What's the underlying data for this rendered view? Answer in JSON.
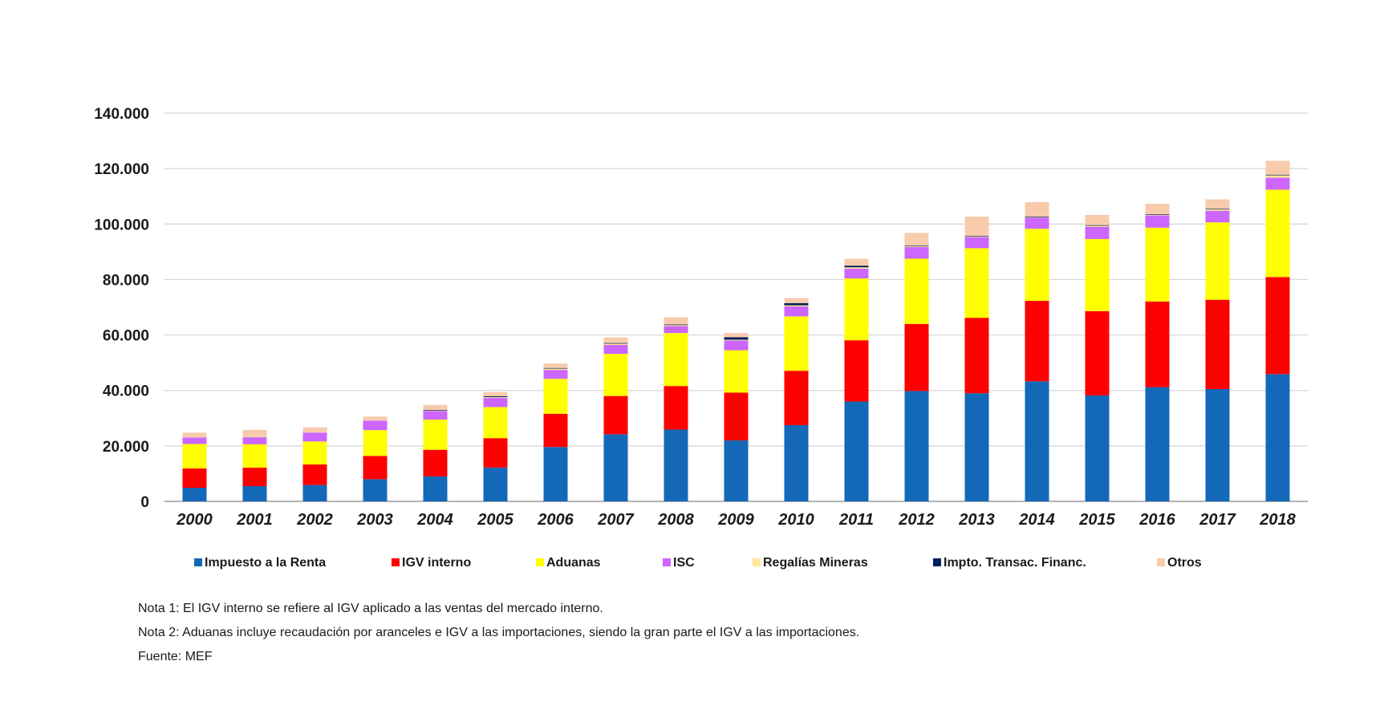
{
  "chart_data": {
    "type": "bar",
    "stacked": true,
    "title": "",
    "xlabel": "",
    "ylabel": "",
    "ylim": [
      0,
      140000
    ],
    "yticks": [
      0,
      20000,
      40000,
      60000,
      80000,
      100000,
      120000,
      140000
    ],
    "ytick_labels": [
      "0",
      "20.000",
      "40.000",
      "60.000",
      "80.000",
      "100.000",
      "120.000",
      "140.000"
    ],
    "grid": true,
    "legend_position": "bottom",
    "categories": [
      "2000",
      "2001",
      "2002",
      "2003",
      "2004",
      "2005",
      "2006",
      "2007",
      "2008",
      "2009",
      "2010",
      "2011",
      "2012",
      "2013",
      "2014",
      "2015",
      "2016",
      "2017",
      "2018"
    ],
    "series": [
      {
        "name": "Impuesto a la Renta",
        "color": "#1468B8",
        "values": [
          4900,
          5500,
          5900,
          8000,
          9000,
          12200,
          19600,
          24200,
          25900,
          22000,
          27500,
          36000,
          39800,
          39000,
          43300,
          38200,
          41200,
          40500,
          45900
        ]
      },
      {
        "name": "IGV interno",
        "color": "#FF0000",
        "values": [
          7000,
          6700,
          7400,
          8400,
          9600,
          10600,
          12000,
          13800,
          15700,
          17200,
          19600,
          22100,
          24200,
          27200,
          29000,
          30400,
          30900,
          32200,
          35000
        ]
      },
      {
        "name": "Aduanas",
        "color": "#FFFF00",
        "values": [
          8800,
          8400,
          8300,
          9300,
          10900,
          11200,
          12600,
          15200,
          19100,
          15300,
          19600,
          22300,
          23500,
          25100,
          26000,
          26000,
          26600,
          27900,
          31500
        ]
      },
      {
        "name": "ISC",
        "color": "#CC66FF",
        "values": [
          2300,
          2500,
          3200,
          3400,
          3200,
          3300,
          3200,
          3200,
          2500,
          3500,
          3600,
          3500,
          4200,
          4000,
          4000,
          4400,
          4400,
          4200,
          4300
        ]
      },
      {
        "name": "Regalías Mineras",
        "color": "#FFE699",
        "values": [
          0,
          0,
          0,
          0,
          100,
          300,
          500,
          500,
          400,
          300,
          400,
          500,
          500,
          400,
          300,
          500,
          300,
          600,
          1000
        ]
      },
      {
        "name": "Impto. Transac. Financ.",
        "color": "#001F5F",
        "values": [
          0,
          0,
          0,
          0,
          200,
          300,
          200,
          200,
          200,
          900,
          800,
          600,
          100,
          100,
          100,
          100,
          100,
          100,
          100
        ]
      },
      {
        "name": "Otros",
        "color": "#F8CBAD",
        "values": [
          1800,
          2700,
          1900,
          1500,
          1800,
          1500,
          1600,
          2000,
          2600,
          1500,
          1800,
          2500,
          4500,
          6900,
          5200,
          3700,
          3800,
          3400,
          5000
        ]
      }
    ]
  },
  "notes": [
    "Nota 1: El IGV interno se refiere al IGV aplicado a las ventas del mercado interno.",
    "Nota 2: Aduanas incluye recaudación por aranceles e IGV a las importaciones, siendo la gran parte el IGV a las importaciones.",
    "Fuente: MEF"
  ]
}
